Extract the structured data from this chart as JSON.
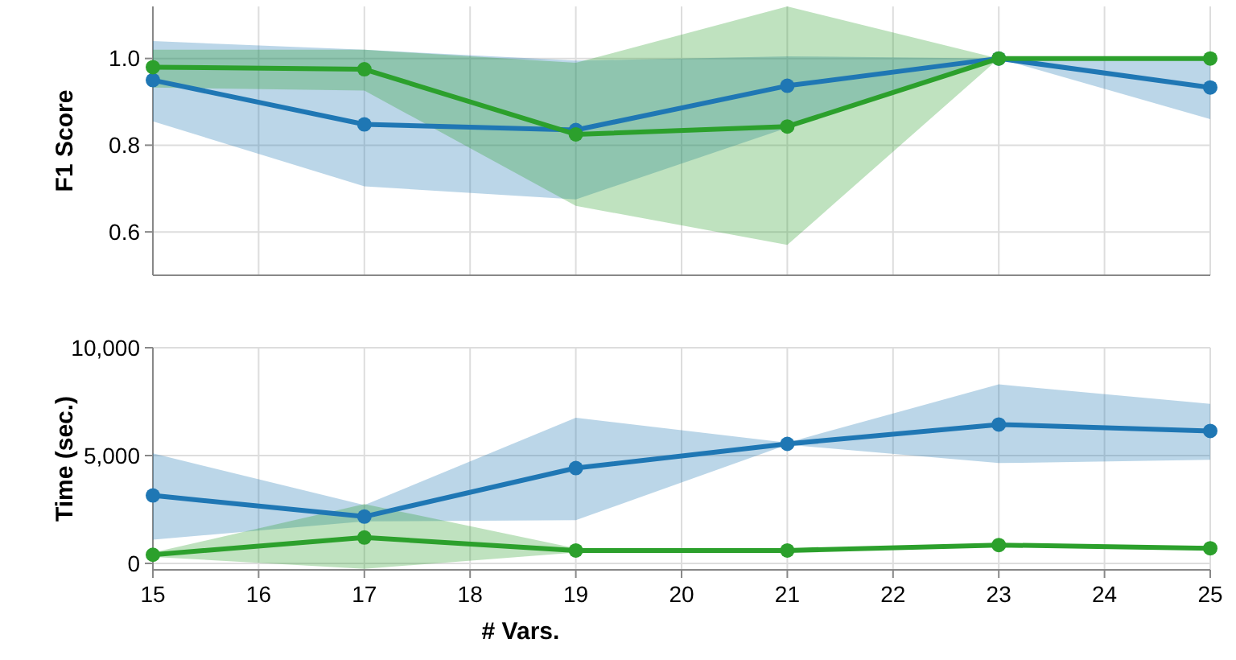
{
  "chart_data": [
    {
      "type": "line",
      "ylabel": "F1 Score",
      "x": [
        15,
        17,
        19,
        21,
        23,
        25
      ],
      "xlim": [
        15,
        25
      ],
      "xticks": [
        15,
        16,
        17,
        18,
        19,
        20,
        21,
        22,
        23,
        24,
        25
      ],
      "ylim": [
        0.5,
        1.12
      ],
      "yticks": [
        0.6,
        0.8,
        {
          "value": 1.0,
          "label": "1.0"
        }
      ],
      "grid": true,
      "marker": "circle",
      "tick_labels": "y",
      "series": [
        {
          "color": "#1f77b4",
          "values": [
            0.95,
            0.848,
            0.835,
            0.937,
            1.0,
            0.933
          ],
          "lower": [
            0.855,
            0.705,
            0.675,
            0.84,
            1.0,
            0.86
          ],
          "upper": [
            1.04,
            1.02,
            0.995,
            1.005,
            1.0,
            1.0
          ]
        },
        {
          "color": "#2ca02c",
          "values": [
            0.98,
            0.975,
            0.825,
            0.843,
            1.0,
            1.0
          ],
          "lower": [
            0.933,
            0.926,
            0.66,
            0.57,
            1.0,
            1.0
          ],
          "upper": [
            1.02,
            1.02,
            0.99,
            1.12,
            1.0,
            1.0
          ]
        }
      ]
    },
    {
      "type": "line",
      "ylabel": "Time (sec.)",
      "xlabel": "# Vars.",
      "x": [
        15,
        17,
        19,
        21,
        23,
        25
      ],
      "xlim": [
        15,
        25
      ],
      "xticks": [
        15,
        16,
        17,
        18,
        19,
        20,
        21,
        22,
        23,
        24,
        25
      ],
      "ylim": [
        -300,
        10000
      ],
      "yticks": [
        {
          "value": 0,
          "label": "0"
        },
        {
          "value": 5000,
          "label": "5,000"
        },
        {
          "value": 10000,
          "label": "10,000"
        }
      ],
      "grid": true,
      "marker": "circle",
      "series": [
        {
          "color": "#1f77b4",
          "values": [
            3150,
            2170,
            4420,
            5540,
            6440,
            6140
          ],
          "lower": [
            1100,
            1950,
            2000,
            5500,
            4650,
            4800
          ],
          "upper": [
            5100,
            2700,
            6750,
            5600,
            8300,
            7400
          ]
        },
        {
          "color": "#2ca02c",
          "values": [
            400,
            1200,
            600,
            600,
            850,
            700
          ],
          "lower": [
            300,
            -250,
            500,
            600,
            800,
            650
          ],
          "upper": [
            500,
            2750,
            700,
            600,
            900,
            750
          ]
        }
      ]
    }
  ]
}
